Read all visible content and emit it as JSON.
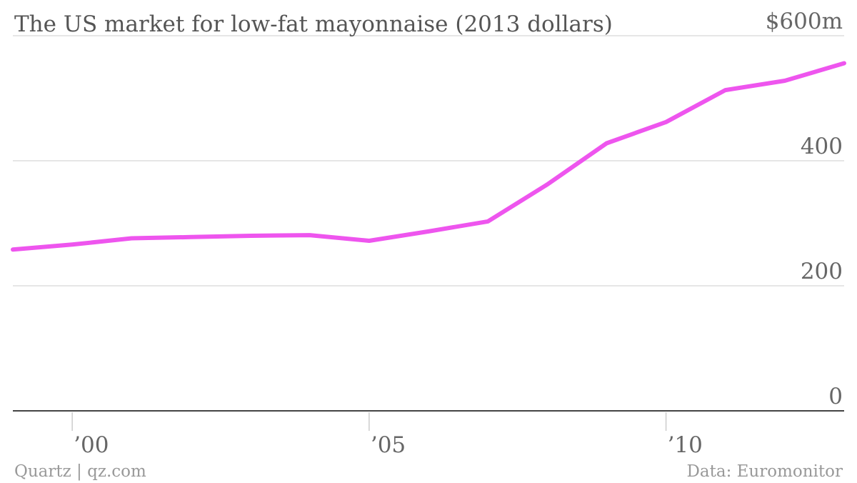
{
  "chart_data": {
    "type": "line",
    "title": "The US market for low-fat mayonnaise (2013 dollars)",
    "xlabel": "",
    "ylabel": "",
    "xlim": [
      1999,
      2013
    ],
    "ylim": [
      0,
      600
    ],
    "grid": true,
    "y_ticks": [
      {
        "value": 0,
        "label": "0"
      },
      {
        "value": 200,
        "label": "200"
      },
      {
        "value": 400,
        "label": "400"
      },
      {
        "value": 600,
        "label": "$600m"
      }
    ],
    "x_ticks": [
      {
        "value": 2000,
        "label": "’00"
      },
      {
        "value": 2005,
        "label": "’05"
      },
      {
        "value": 2010,
        "label": "’10"
      }
    ],
    "series": [
      {
        "x": [
          1999,
          2000,
          2001,
          2002,
          2003,
          2004,
          2005,
          2006,
          2007,
          2008,
          2009,
          2010,
          2011,
          2012,
          2013
        ],
        "values": [
          258,
          266,
          276,
          278,
          280,
          281,
          272,
          287,
          303,
          362,
          428,
          462,
          513,
          528,
          556
        ],
        "color": "#ee55ee"
      }
    ],
    "source": "Data: Euromonitor",
    "credit": "Quartz | qz.com"
  }
}
